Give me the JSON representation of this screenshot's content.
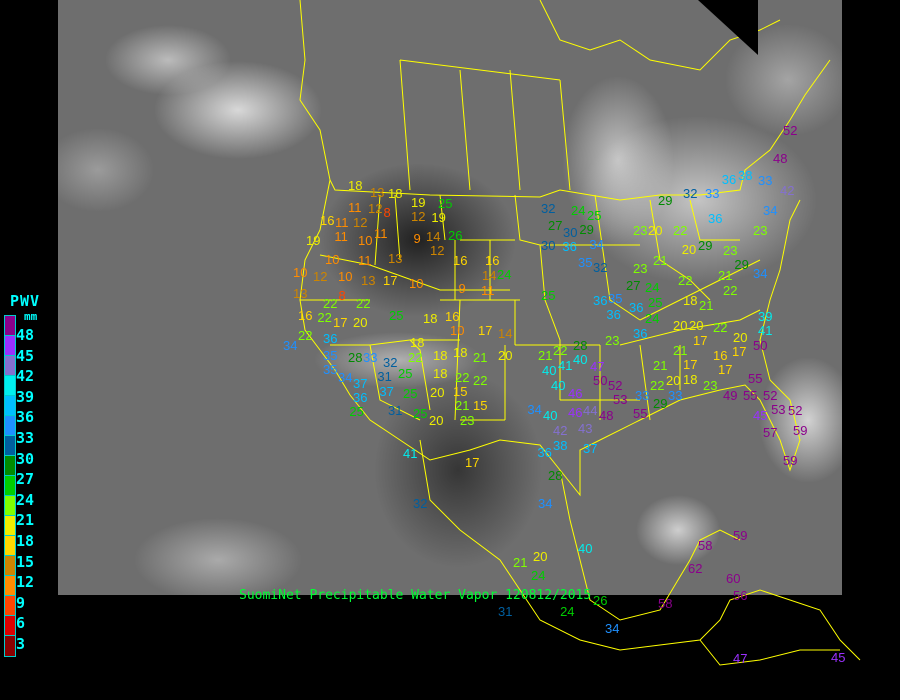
{
  "caption": "SuomiNet Precipitable Water Vapor 120812/2015",
  "legend": {
    "title": "PWV",
    "unit": "mm",
    "labels": [
      "48",
      "45",
      "42",
      "39",
      "36",
      "33",
      "30",
      "27",
      "24",
      "21",
      "18",
      "15",
      "12",
      "9",
      "6",
      "3"
    ],
    "colors_top_to_bottom": [
      "#8b008b",
      "#9b30ff",
      "#8470d0",
      "#00eeee",
      "#00bfff",
      "#1e90ff",
      "#005f9f",
      "#008b00",
      "#00cd00",
      "#7fff00",
      "#eeee00",
      "#ffd700",
      "#cd8500",
      "#ff8c00",
      "#ff4500",
      "#dd0000",
      "#8b0000"
    ]
  },
  "border_color": "#ffff00",
  "stations_pwv_mm": [
    18,
    13,
    18,
    19,
    25,
    16,
    11,
    12,
    8,
    11,
    12,
    12,
    19,
    11,
    10,
    11,
    9,
    14,
    26,
    19,
    10,
    11,
    13,
    12,
    16,
    16,
    10,
    12,
    10,
    13,
    17,
    10,
    9,
    11,
    14,
    24,
    13,
    8,
    22,
    22,
    16,
    22,
    17,
    20,
    25,
    18,
    16,
    10,
    17,
    14,
    22,
    36,
    34,
    35,
    28,
    33,
    32,
    22,
    18,
    18,
    18,
    21,
    20,
    35,
    34,
    37,
    31,
    25,
    36,
    37,
    25,
    18,
    22,
    22,
    15,
    20,
    21,
    15,
    25,
    31,
    25,
    20,
    23,
    41,
    17,
    32,
    24,
    25,
    27,
    30,
    29,
    30,
    36,
    34,
    35,
    32,
    25,
    36,
    35,
    36,
    36,
    25,
    24,
    36,
    20,
    23,
    28,
    22,
    21,
    41,
    40,
    47,
    40,
    40,
    50,
    52,
    46,
    44,
    48,
    40,
    34,
    46,
    42,
    43,
    53,
    33,
    55,
    29,
    38,
    36,
    37,
    20,
    29,
    32,
    33,
    36,
    38,
    42,
    34,
    23,
    29,
    23,
    29,
    34,
    21,
    22,
    20,
    21,
    23,
    22,
    27,
    24,
    18,
    21,
    20,
    22,
    17,
    21,
    20,
    17,
    50,
    41,
    39,
    55,
    49,
    55,
    52,
    45,
    52,
    57,
    59,
    59,
    53,
    21,
    17,
    18,
    20,
    16,
    17,
    23,
    22,
    33,
    52,
    48,
    33,
    36,
    22,
    23,
    32,
    28,
    34,
    21,
    20,
    24,
    40,
    62,
    58,
    59,
    60,
    56,
    58,
    34,
    47,
    45,
    24,
    26,
    31
  ]
}
